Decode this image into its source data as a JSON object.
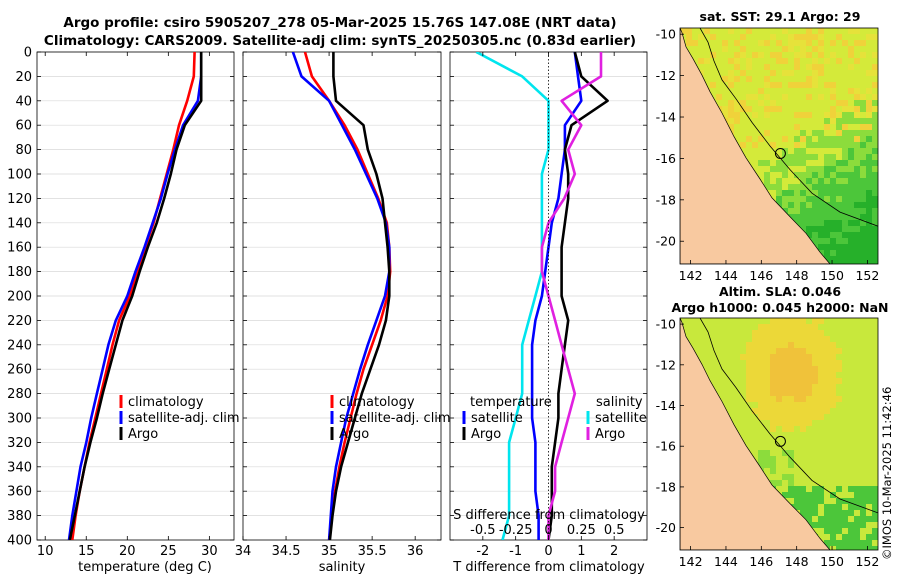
{
  "title": {
    "line1": "Argo profile: csiro 5905207_278 05-Mar-2025 15.76S 147.08E (NRT data)",
    "line2": "Climatology: CARS2009. Satellite-adj clim: synTS_20250305.nc (0.83d earlier)"
  },
  "map_top": {
    "title": "sat. SST: 29.1 Argo: 29",
    "x_ticks": [
      "142",
      "144",
      "146",
      "148",
      "150",
      "152"
    ],
    "y_ticks": [
      "-10",
      "-12",
      "-14",
      "-16",
      "-18",
      "-20"
    ]
  },
  "map_bottom": {
    "title_line1": "Altim. SLA: 0.046",
    "title_line2": "Argo h1000: 0.045 h2000: NaN",
    "x_ticks": [
      "142",
      "144",
      "146",
      "148",
      "150",
      "152"
    ],
    "y_ticks": [
      "-10",
      "-12",
      "-14",
      "-16",
      "-18",
      "-20"
    ]
  },
  "stamp": "©IMOS 10-Mar-2025 11:42:46",
  "colors": {
    "climatology": "#ff0000",
    "satellite": "#0000ff",
    "argo": "#000000",
    "s_diff": "#00e5ee",
    "s_argo": "#e020e0",
    "land": "#f8c9a0",
    "sea_bg": "#d8f040"
  },
  "chart_data": [
    {
      "type": "line",
      "panel": "temperature",
      "xlabel": "temperature (deg C)",
      "ylabel": "",
      "xlim": [
        9,
        33
      ],
      "ylim": [
        400,
        0
      ],
      "x_ticks": [
        "10",
        "15",
        "20",
        "25",
        "30"
      ],
      "y_ticks": [
        "0",
        "20",
        "40",
        "60",
        "80",
        "100",
        "120",
        "140",
        "160",
        "180",
        "200",
        "220",
        "240",
        "260",
        "280",
        "300",
        "320",
        "340",
        "360",
        "380",
        "400"
      ],
      "legend": [
        "climatology",
        "satellite-adj. clim",
        "Argo"
      ],
      "depth": [
        0,
        20,
        40,
        60,
        80,
        100,
        120,
        140,
        160,
        180,
        200,
        220,
        240,
        260,
        280,
        300,
        320,
        340,
        360,
        380,
        400
      ],
      "series": [
        {
          "name": "climatology",
          "values": [
            28.2,
            28.1,
            27.3,
            26.3,
            25.6,
            24.8,
            24.0,
            23.2,
            22.2,
            21.2,
            20.3,
            19.0,
            18.2,
            17.5,
            16.8,
            16.1,
            15.4,
            14.8,
            14.2,
            13.7,
            13.3
          ]
        },
        {
          "name": "satellite-adj. clim",
          "values": [
            29.0,
            29.0,
            28.6,
            26.8,
            25.8,
            24.9,
            24.1,
            23.1,
            22.1,
            21.0,
            20.0,
            18.6,
            17.7,
            17.0,
            16.3,
            15.6,
            15.0,
            14.3,
            13.8,
            13.3,
            12.9
          ]
        },
        {
          "name": "Argo",
          "values": [
            29.0,
            29.0,
            29.0,
            27.0,
            26.0,
            25.3,
            24.5,
            23.6,
            22.5,
            21.5,
            20.6,
            19.4,
            18.6,
            17.8,
            17.0,
            16.3,
            15.5,
            14.8,
            14.2,
            13.6,
            13.0
          ]
        }
      ]
    },
    {
      "type": "line",
      "panel": "salinity",
      "xlabel": "salinity",
      "ylabel": "",
      "xlim": [
        34.0,
        36.3
      ],
      "ylim": [
        400,
        0
      ],
      "x_ticks": [
        "34",
        "34.5",
        "35",
        "35.5",
        "36"
      ],
      "legend": [
        "climatology",
        "satellite-adj. clim",
        "Argo"
      ],
      "depth": [
        0,
        20,
        40,
        60,
        80,
        100,
        120,
        140,
        160,
        180,
        200,
        220,
        240,
        260,
        280,
        300,
        320,
        340,
        360,
        380,
        400
      ],
      "series": [
        {
          "name": "climatology",
          "values": [
            34.72,
            34.8,
            35.0,
            35.18,
            35.33,
            35.45,
            35.57,
            35.67,
            35.7,
            35.71,
            35.68,
            35.6,
            35.5,
            35.4,
            35.32,
            35.25,
            35.18,
            35.12,
            35.07,
            35.03,
            35.0
          ]
        },
        {
          "name": "satellite-adj. clim",
          "values": [
            34.58,
            34.68,
            35.0,
            35.15,
            35.3,
            35.43,
            35.56,
            35.66,
            35.7,
            35.7,
            35.65,
            35.55,
            35.45,
            35.36,
            35.28,
            35.2,
            35.14,
            35.08,
            35.04,
            35.02,
            35.0
          ]
        },
        {
          "name": "Argo",
          "values": [
            35.05,
            35.05,
            35.08,
            35.4,
            35.45,
            35.55,
            35.62,
            35.65,
            35.68,
            35.7,
            35.7,
            35.66,
            35.58,
            35.48,
            35.38,
            35.3,
            35.22,
            35.14,
            35.08,
            35.04,
            35.01
          ]
        }
      ]
    },
    {
      "type": "line",
      "panel": "difference",
      "xlabel": "T difference from climatology",
      "xlabel_top": "S difference from climatology",
      "ylabel": "",
      "xlim": [
        -3,
        3
      ],
      "ylim": [
        400,
        0
      ],
      "x_ticks": [
        "-2",
        "-1",
        "0",
        "1",
        "2"
      ],
      "x_ticks_top": [
        "-0.5",
        "-0.25",
        "0",
        "0.25",
        "0.5"
      ],
      "legend_header_left": "temperature",
      "legend_header_right": "salinity",
      "legend": [
        "satellite",
        "Argo",
        "satellite",
        "Argo"
      ],
      "depth": [
        0,
        20,
        40,
        60,
        80,
        100,
        120,
        140,
        160,
        180,
        200,
        220,
        240,
        260,
        280,
        300,
        320,
        340,
        360,
        380,
        400
      ],
      "series": [
        {
          "name": "T satellite",
          "values": [
            0.8,
            0.9,
            1.0,
            0.5,
            0.5,
            0.4,
            0.3,
            0.1,
            0.0,
            -0.1,
            -0.2,
            -0.4,
            -0.5,
            -0.5,
            -0.5,
            -0.5,
            -0.4,
            -0.4,
            -0.4,
            -0.3,
            -0.3
          ]
        },
        {
          "name": "T Argo",
          "values": [
            0.8,
            1.0,
            1.8,
            0.7,
            0.5,
            0.6,
            0.6,
            0.5,
            0.4,
            0.4,
            0.4,
            0.6,
            0.5,
            0.4,
            0.3,
            0.3,
            0.2,
            0.1,
            0.1,
            0.1,
            0.0
          ]
        },
        {
          "name": "S satellite",
          "values": [
            -0.55,
            -0.2,
            0.0,
            0.0,
            0.0,
            -0.05,
            -0.05,
            -0.05,
            -0.05,
            -0.05,
            -0.1,
            -0.15,
            -0.2,
            -0.2,
            -0.2,
            -0.25,
            -0.3,
            -0.3,
            -0.3,
            -0.3,
            -0.35
          ]
        },
        {
          "name": "S Argo",
          "values": [
            0.4,
            0.4,
            0.1,
            0.25,
            0.15,
            0.2,
            0.12,
            0.0,
            -0.05,
            -0.05,
            0.0,
            0.05,
            0.1,
            0.15,
            0.2,
            0.15,
            0.1,
            0.05,
            0.05,
            0.0,
            0.0
          ]
        }
      ]
    }
  ]
}
